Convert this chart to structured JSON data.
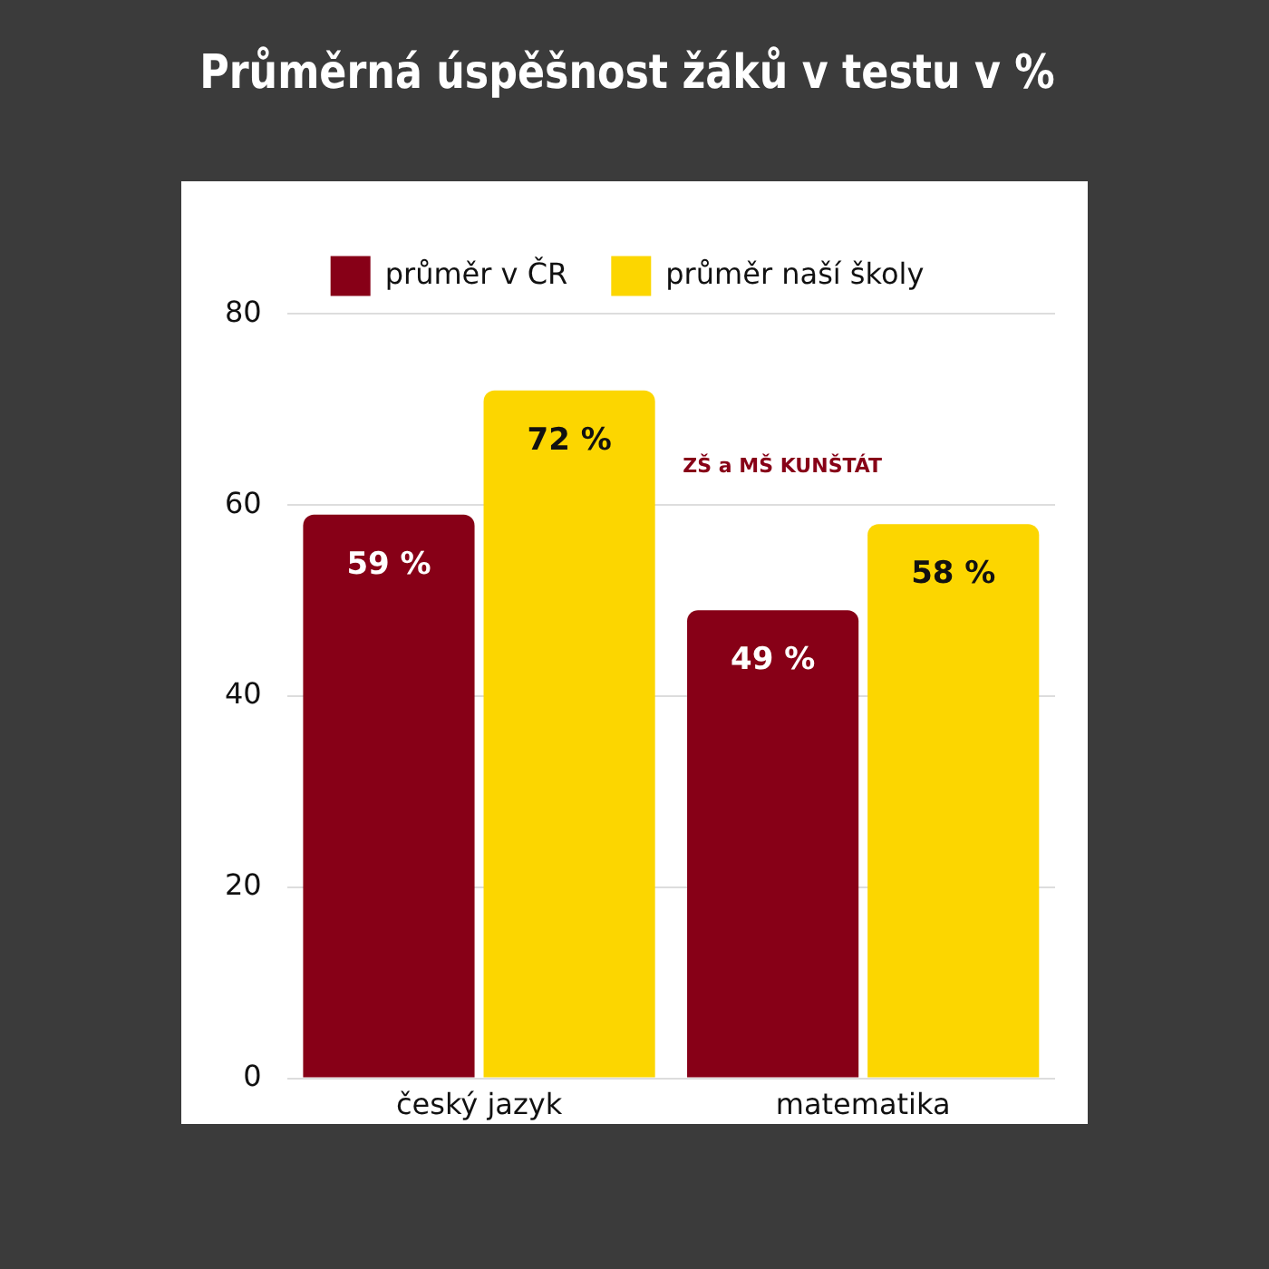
{
  "chart_data": {
    "type": "bar",
    "title": "Průměrná úspěšnost žáků v testu v %",
    "categories": [
      "český jazyk",
      "matematika"
    ],
    "series": [
      {
        "name": "průměr v ČR",
        "color": "#870017",
        "values": [
          59,
          49
        ],
        "value_labels": [
          "59 %",
          "49 %"
        ]
      },
      {
        "name": "průměr naší školy",
        "color": "#fcd600",
        "values": [
          72,
          58
        ],
        "value_labels": [
          "72 %",
          "58 %"
        ]
      }
    ],
    "ylim": [
      0,
      80
    ],
    "yticks": [
      0,
      20,
      40,
      60,
      80
    ],
    "grid": "y",
    "legend": "top",
    "annotations": [
      "ZŠ a MŠ KUNŠTÁT"
    ]
  }
}
